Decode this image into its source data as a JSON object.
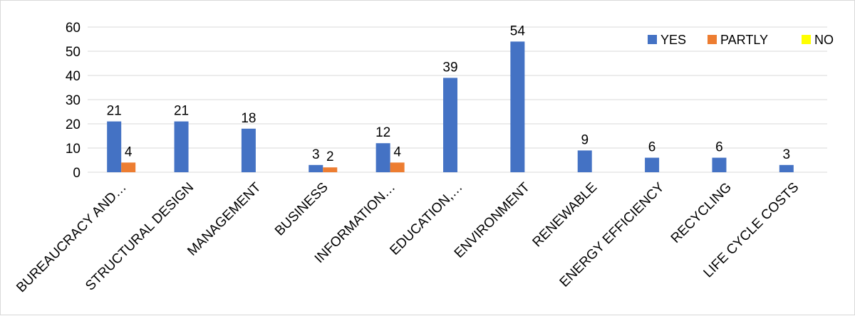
{
  "chart_data": {
    "type": "bar",
    "title": "",
    "xlabel": "",
    "ylabel": "",
    "ylim": [
      0,
      60
    ],
    "yticks": [
      0,
      10,
      20,
      30,
      40,
      50,
      60
    ],
    "grid": true,
    "legend": "top-right",
    "categories": [
      "BUREAUCRACY AND…",
      "STRUCTURAL DESIGN",
      "MANAGEMENT",
      "BUSINESS",
      "INFORMATION…",
      "EDUCATION,…",
      "ENVIRONMENT",
      "RENEWABLE",
      "ENERGY EFFICIENCY",
      "RECYCLING",
      "LIFE CYCLE COSTS"
    ],
    "series": [
      {
        "name": "YES",
        "color": "#4472c4",
        "values": [
          21,
          21,
          18,
          3,
          12,
          39,
          54,
          9,
          6,
          6,
          3
        ]
      },
      {
        "name": "PARTLY",
        "color": "#ed7d31",
        "values": [
          4,
          null,
          null,
          2,
          4,
          null,
          null,
          null,
          null,
          null,
          null
        ]
      },
      {
        "name": "NO",
        "color": "#ffff00",
        "values": [
          null,
          null,
          null,
          null,
          null,
          null,
          null,
          null,
          null,
          null,
          null
        ]
      }
    ]
  }
}
